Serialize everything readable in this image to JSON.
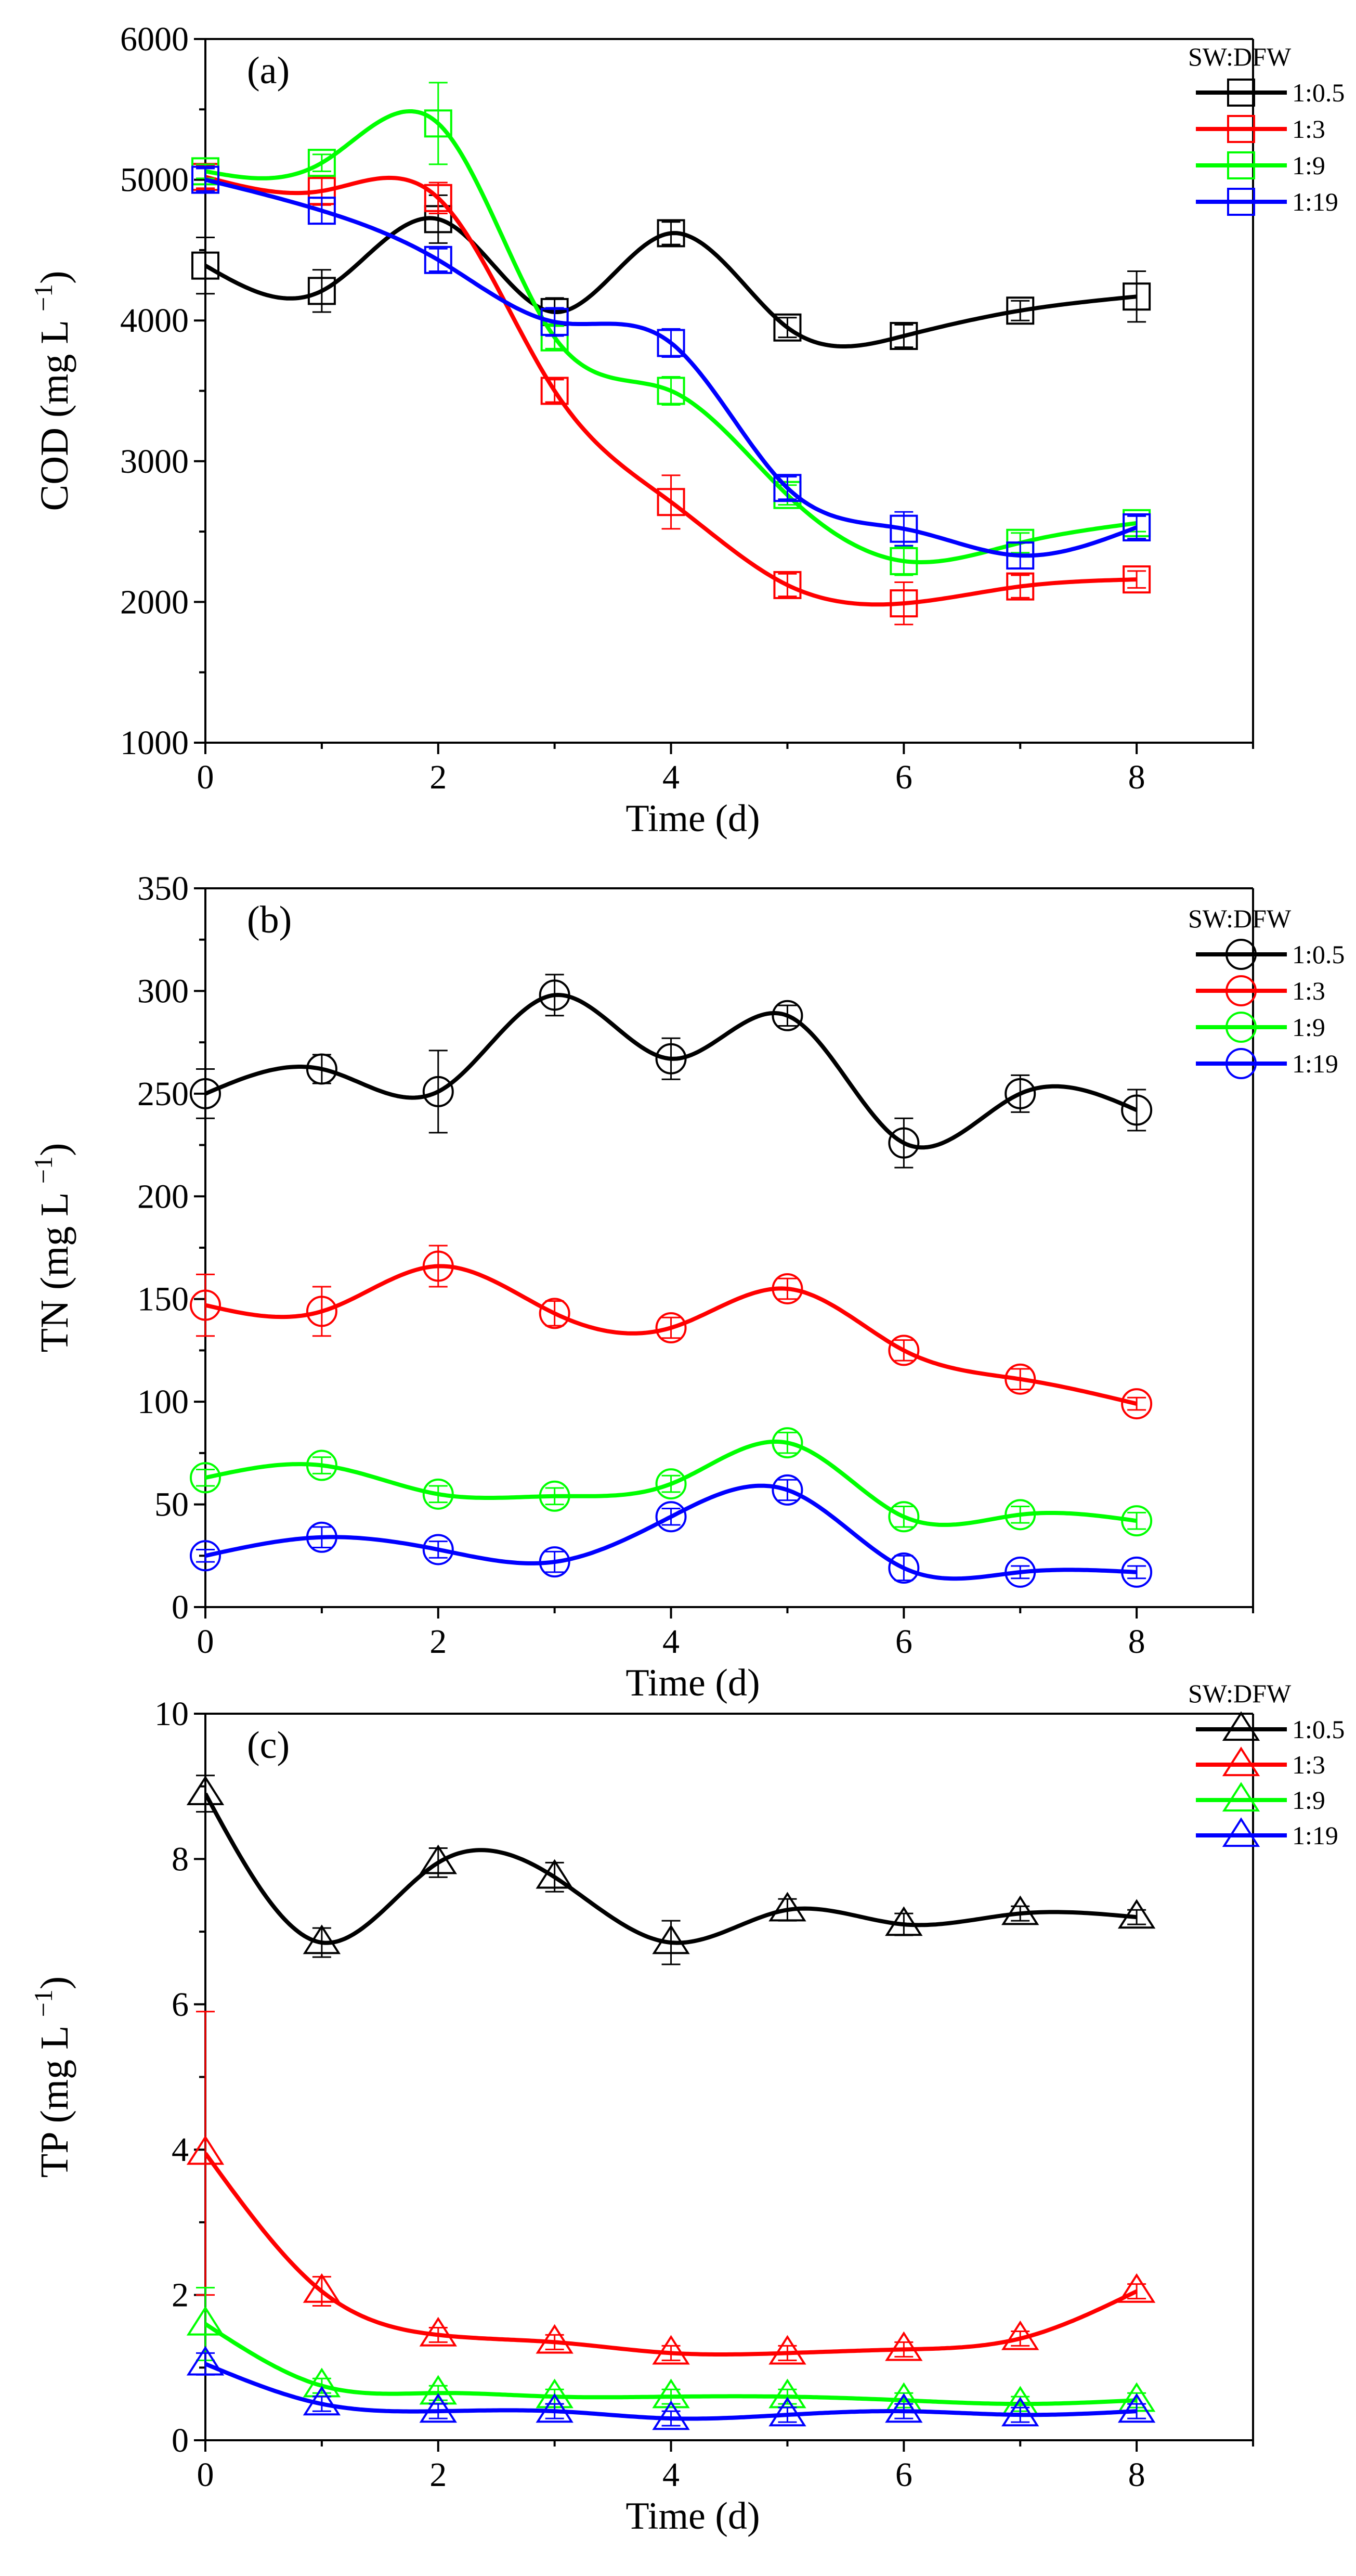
{
  "figure": {
    "shared_xlabel": "Time (d)",
    "legend_title": "SW:DFW",
    "series_colors": [
      "#000000",
      "#ff0000",
      "#00ff00",
      "#0000ff"
    ]
  },
  "chart_data": [
    {
      "type": "line",
      "panel_label": "(a)",
      "marker": "square",
      "xlabel": "Time (d)",
      "ylabel": "COD (mg L",
      "ylabel_sup": "−1",
      "ylabel_close": ")",
      "xlim": [
        0,
        9
      ],
      "ylim": [
        1000,
        6000
      ],
      "xticks": [
        0,
        2,
        4,
        6,
        8
      ],
      "yticks": [
        1000,
        2000,
        3000,
        4000,
        5000,
        6000
      ],
      "legend": {
        "title": "SW:DFW",
        "position": "top-right"
      },
      "x": [
        0,
        1,
        2,
        3,
        4,
        5,
        6,
        7,
        8
      ],
      "series": [
        {
          "name": "1:0.5",
          "color": "#000000",
          "values": [
            4390,
            4210,
            4720,
            4060,
            4620,
            3950,
            3890,
            4070,
            4170
          ],
          "errors": [
            200,
            150,
            170,
            100,
            80,
            70,
            80,
            70,
            180
          ]
        },
        {
          "name": "1:3",
          "color": "#ff0000",
          "values": [
            5020,
            4920,
            4870,
            3500,
            2710,
            2120,
            1990,
            2110,
            2160
          ],
          "errors": [
            80,
            100,
            110,
            80,
            190,
            80,
            150,
            80,
            60
          ]
        },
        {
          "name": "1:9",
          "color": "#00ff00",
          "values": [
            5060,
            5120,
            5400,
            3880,
            3500,
            2760,
            2290,
            2420,
            2560
          ],
          "errors": [
            50,
            60,
            290,
            80,
            100,
            70,
            100,
            70,
            60
          ]
        },
        {
          "name": "1:19",
          "color": "#0000ff",
          "values": [
            5000,
            4780,
            4430,
            3990,
            3840,
            2810,
            2520,
            2330,
            2530
          ],
          "errors": [
            80,
            90,
            80,
            100,
            100,
            80,
            120,
            90,
            80
          ]
        }
      ]
    },
    {
      "type": "line",
      "panel_label": "(b)",
      "marker": "circle",
      "xlabel": "Time (d)",
      "ylabel": "TN (mg L",
      "ylabel_sup": "−1",
      "ylabel_close": ")",
      "xlim": [
        0,
        9
      ],
      "ylim": [
        0,
        350
      ],
      "xticks": [
        0,
        2,
        4,
        6,
        8
      ],
      "yticks": [
        0,
        50,
        100,
        150,
        200,
        250,
        300,
        350
      ],
      "legend": {
        "title": "SW:DFW",
        "position": "top-right"
      },
      "x": [
        0,
        1,
        2,
        3,
        4,
        5,
        6,
        7,
        8
      ],
      "series": [
        {
          "name": "1:0.5",
          "color": "#000000",
          "values": [
            250,
            262,
            251,
            298,
            267,
            288,
            226,
            250,
            242
          ],
          "errors": [
            12,
            7,
            20,
            10,
            10,
            5,
            12,
            9,
            10
          ]
        },
        {
          "name": "1:3",
          "color": "#ff0000",
          "values": [
            147,
            144,
            166,
            143,
            136,
            155,
            125,
            111,
            99
          ],
          "errors": [
            15,
            12,
            10,
            6,
            5,
            5,
            5,
            5,
            3
          ]
        },
        {
          "name": "1:9",
          "color": "#00ff00",
          "values": [
            63,
            69,
            55,
            54,
            60,
            80,
            44,
            45,
            42
          ],
          "errors": [
            4,
            4,
            4,
            4,
            4,
            5,
            5,
            4,
            4
          ]
        },
        {
          "name": "1:19",
          "color": "#0000ff",
          "values": [
            25,
            34,
            28,
            22,
            44,
            57,
            19,
            17,
            17
          ],
          "errors": [
            3,
            5,
            4,
            5,
            4,
            5,
            6,
            3,
            3
          ]
        }
      ]
    },
    {
      "type": "line",
      "panel_label": "(c)",
      "marker": "triangle",
      "xlabel": "Time (d)",
      "ylabel": "TP (mg L",
      "ylabel_sup": "−1",
      "ylabel_close": ")",
      "xlim": [
        0,
        9
      ],
      "ylim": [
        0,
        10
      ],
      "xticks": [
        0,
        2,
        4,
        6,
        8
      ],
      "yticks": [
        0,
        2,
        4,
        6,
        8,
        10
      ],
      "legend": {
        "title": "SW:DFW",
        "position": "top-right"
      },
      "x": [
        0,
        1,
        2,
        3,
        4,
        5,
        6,
        7,
        8
      ],
      "series": [
        {
          "name": "1:0.5",
          "color": "#000000",
          "values": [
            8.9,
            6.85,
            7.95,
            7.75,
            6.85,
            7.3,
            7.1,
            7.25,
            7.2
          ],
          "errors": [
            0.25,
            0.2,
            0.2,
            0.2,
            0.3,
            0.15,
            0.15,
            0.1,
            0.1
          ]
        },
        {
          "name": "1:3",
          "color": "#ff0000",
          "values": [
            3.95,
            2.05,
            1.45,
            1.35,
            1.2,
            1.2,
            1.25,
            1.4,
            2.05
          ],
          "errors": [
            1.95,
            0.2,
            0.1,
            0.1,
            0.1,
            0.1,
            0.1,
            0.1,
            0.1
          ]
        },
        {
          "name": "1:9",
          "color": "#00ff00",
          "values": [
            1.6,
            0.75,
            0.65,
            0.6,
            0.6,
            0.6,
            0.55,
            0.5,
            0.55
          ],
          "errors": [
            0.5,
            0.1,
            0.1,
            0.1,
            0.1,
            0.1,
            0.1,
            0.1,
            0.1
          ]
        },
        {
          "name": "1:19",
          "color": "#0000ff",
          "values": [
            1.05,
            0.5,
            0.4,
            0.4,
            0.3,
            0.35,
            0.4,
            0.35,
            0.4
          ],
          "errors": [
            0.15,
            0.1,
            0.1,
            0.1,
            0.1,
            0.1,
            0.1,
            0.1,
            0.1
          ]
        }
      ]
    }
  ]
}
